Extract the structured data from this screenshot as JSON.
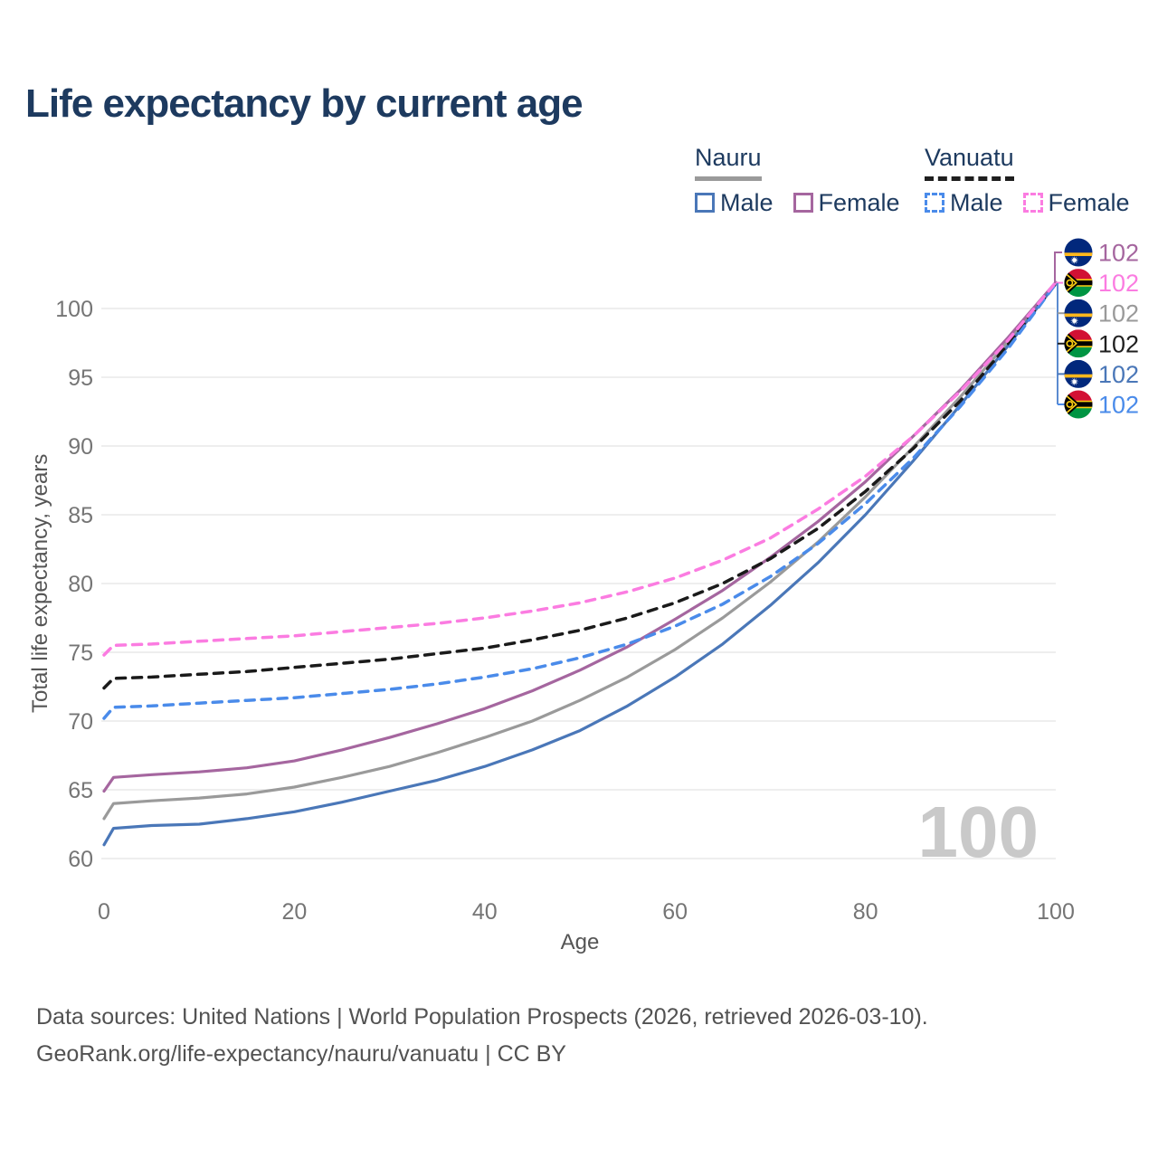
{
  "title": "Life expectancy by current age",
  "legend": {
    "groups": [
      {
        "name": "Nauru",
        "line_style": "solid",
        "underline_color": "#9a9a9a",
        "items": [
          {
            "label": "Male",
            "color": "#4a77b8",
            "dashed": false
          },
          {
            "label": "Female",
            "color": "#a5669f",
            "dashed": false
          }
        ]
      },
      {
        "name": "Vanuatu",
        "line_style": "dashed",
        "underline_color": "#1f1f1f",
        "items": [
          {
            "label": "Male",
            "color": "#4a8bea",
            "dashed": true
          },
          {
            "label": "Female",
            "color": "#fb7ce1",
            "dashed": true
          }
        ]
      }
    ]
  },
  "watermark": "100",
  "footer": {
    "line1": "Data sources: United Nations | World Population Prospects (2026, retrieved 2026-03-10).",
    "line2": "GeoRank.org/life-expectancy/nauru/vanuatu | CC BY"
  },
  "end_labels": [
    {
      "flag": "nauru",
      "country": "Nauru",
      "series": "Female",
      "value": "102",
      "color": "#a5669f"
    },
    {
      "flag": "vanuatu",
      "country": "Vanuatu",
      "series": "Female",
      "value": "102",
      "color": "#fb7ce1"
    },
    {
      "flag": "nauru",
      "country": "Nauru",
      "series": "Total",
      "value": "102",
      "color": "#9a9a9a"
    },
    {
      "flag": "vanuatu",
      "country": "Vanuatu",
      "series": "Total",
      "value": "102",
      "color": "#1f1f1f"
    },
    {
      "flag": "nauru",
      "country": "Nauru",
      "series": "Male",
      "value": "102",
      "color": "#4a77b8"
    },
    {
      "flag": "vanuatu",
      "country": "Vanuatu",
      "series": "Male",
      "value": "102",
      "color": "#4a8bea"
    }
  ],
  "chart_data": {
    "type": "line",
    "title": "Life expectancy by current age",
    "xlabel": "Age",
    "ylabel": "Total life expectancy, years",
    "xlim": [
      0,
      100
    ],
    "ylim": [
      60,
      100
    ],
    "xticks": [
      0,
      20,
      40,
      60,
      80,
      100
    ],
    "yticks": [
      60,
      65,
      70,
      75,
      80,
      85,
      90,
      95,
      100
    ],
    "grid": "horizontal",
    "legend_position": "top-right",
    "x": [
      0,
      1,
      5,
      10,
      15,
      20,
      25,
      30,
      35,
      40,
      45,
      50,
      55,
      60,
      65,
      70,
      75,
      80,
      85,
      90,
      95,
      100
    ],
    "series": [
      {
        "name": "Nauru (total)",
        "country": "Nauru",
        "sex": "Total",
        "color": "#9a9a9a",
        "dashed": false,
        "values": [
          62.9,
          64.0,
          64.2,
          64.4,
          64.7,
          65.2,
          65.9,
          66.7,
          67.7,
          68.8,
          70.0,
          71.5,
          73.2,
          75.2,
          77.5,
          80.1,
          83.0,
          86.3,
          89.9,
          93.6,
          97.6,
          101.8
        ]
      },
      {
        "name": "Nauru Female",
        "country": "Nauru",
        "sex": "Female",
        "color": "#a5669f",
        "dashed": false,
        "values": [
          64.9,
          65.9,
          66.1,
          66.3,
          66.6,
          67.1,
          67.9,
          68.8,
          69.8,
          70.9,
          72.2,
          73.7,
          75.4,
          77.4,
          79.5,
          81.9,
          84.5,
          87.4,
          90.7,
          94.1,
          97.9,
          101.9
        ]
      },
      {
        "name": "Nauru Male",
        "country": "Nauru",
        "sex": "Male",
        "color": "#4a77b8",
        "dashed": false,
        "values": [
          61.0,
          62.2,
          62.4,
          62.5,
          62.9,
          63.4,
          64.1,
          64.9,
          65.7,
          66.7,
          67.9,
          69.3,
          71.1,
          73.2,
          75.6,
          78.4,
          81.5,
          85.0,
          88.9,
          93.0,
          97.3,
          101.8
        ]
      },
      {
        "name": "Vanuatu (total)",
        "country": "Vanuatu",
        "sex": "Total",
        "color": "#1a1a1a",
        "dashed": true,
        "values": [
          72.4,
          73.1,
          73.2,
          73.4,
          73.6,
          73.9,
          74.2,
          74.5,
          74.9,
          75.3,
          75.9,
          76.6,
          77.5,
          78.6,
          80.0,
          81.8,
          84.0,
          86.7,
          89.8,
          93.3,
          97.4,
          101.8
        ]
      },
      {
        "name": "Vanuatu Male",
        "country": "Vanuatu",
        "sex": "Male",
        "color": "#4a8bea",
        "dashed": true,
        "values": [
          70.2,
          71.0,
          71.1,
          71.3,
          71.5,
          71.7,
          72.0,
          72.3,
          72.7,
          73.2,
          73.8,
          74.6,
          75.6,
          76.9,
          78.5,
          80.5,
          82.9,
          85.8,
          89.1,
          92.9,
          97.1,
          101.8
        ]
      },
      {
        "name": "Vanuatu Female",
        "country": "Vanuatu",
        "sex": "Female",
        "color": "#fb7ce1",
        "dashed": true,
        "values": [
          74.8,
          75.5,
          75.6,
          75.8,
          76.0,
          76.2,
          76.5,
          76.8,
          77.1,
          77.5,
          78.0,
          78.6,
          79.4,
          80.4,
          81.7,
          83.3,
          85.4,
          87.8,
          90.7,
          94.0,
          97.7,
          101.9
        ]
      }
    ]
  }
}
